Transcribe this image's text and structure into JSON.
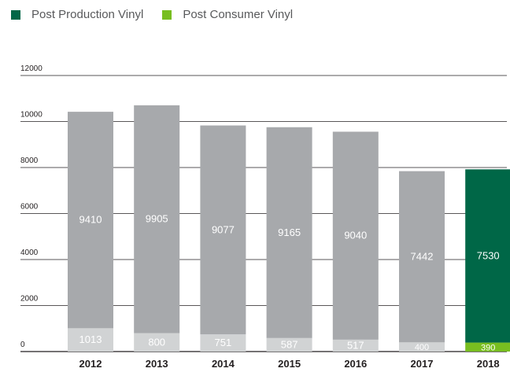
{
  "chart_data": {
    "type": "bar",
    "stacked": true,
    "categories": [
      "2012",
      "2013",
      "2014",
      "2015",
      "2016",
      "2017",
      "2018"
    ],
    "series": [
      {
        "name": "Post Consumer Vinyl",
        "values": [
          1013,
          800,
          751,
          587,
          517,
          400,
          390
        ]
      },
      {
        "name": "Post Production Vinyl",
        "values": [
          9410,
          9905,
          9077,
          9165,
          9040,
          7442,
          7530
        ]
      }
    ],
    "title": "",
    "xlabel": "",
    "ylabel": "",
    "ylim": [
      0,
      12000
    ],
    "yticks": [
      "0",
      "2000",
      "4000",
      "6000",
      "8000",
      "10000",
      "12000"
    ],
    "grid": true,
    "legend_position": "top-left"
  },
  "legend": [
    {
      "label": "Post Production Vinyl",
      "color": "#006747"
    },
    {
      "label": "Post Consumer Vinyl",
      "color": "#78be20"
    }
  ],
  "colors": {
    "production_gray": "#a7a9ac",
    "consumer_gray": "#d1d3d4",
    "production_highlight": "#006747",
    "consumer_highlight": "#78be20",
    "gridline": "#231f20"
  },
  "highlight_category": "2018"
}
